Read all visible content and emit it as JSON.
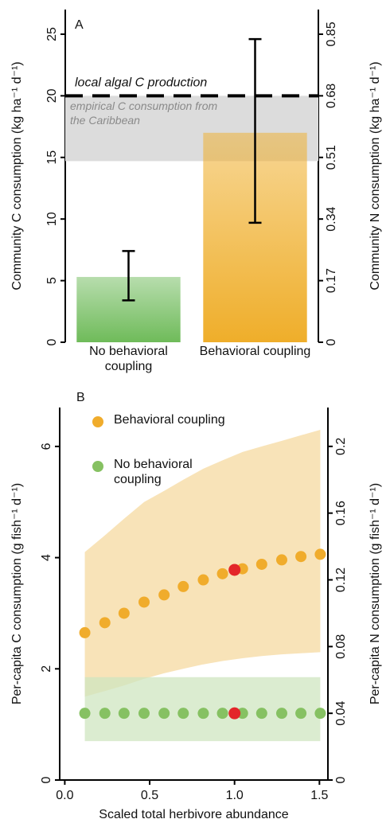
{
  "chart_data": [
    {
      "type": "bar",
      "label": "A",
      "categories": [
        "No behavioral coupling",
        "Behavioral coupling"
      ],
      "values": [
        5.3,
        17
      ],
      "error_low": [
        3.4,
        9.7
      ],
      "error_high": [
        7.4,
        24.6
      ],
      "colors": [
        "#6fbb5a",
        "#efae2a"
      ],
      "ylabel": "Community C consumption (kg ha⁻¹ d⁻¹)",
      "y2label": "Community N consumption (kg ha⁻¹ d⁻¹)",
      "ylim": [
        0,
        27
      ],
      "yticks": [
        0,
        5,
        10,
        15,
        20,
        25
      ],
      "y2lim": [
        0,
        0.918
      ],
      "y2ticks": [
        0,
        0.17,
        0.34,
        0.51,
        0.68,
        0.85
      ],
      "reference_line": {
        "value": 20,
        "label": "local algal C production"
      },
      "band": {
        "range": [
          14.7,
          20
        ],
        "label": "empirical C consumption from the Caribbean",
        "color": "#dcdcdc"
      }
    },
    {
      "type": "scatter",
      "label": "B",
      "x": [
        0.118,
        0.236,
        0.349,
        0.467,
        0.585,
        0.698,
        0.816,
        0.929,
        1.047,
        1.16,
        1.278,
        1.391,
        1.505
      ],
      "series": [
        {
          "name": "Behavioral coupling",
          "color": "#f0ac2c",
          "band_color": "#f6d9a0",
          "values": [
            2.65,
            2.83,
            3.0,
            3.2,
            3.33,
            3.48,
            3.6,
            3.71,
            3.8,
            3.88,
            3.96,
            4.02,
            4.06
          ],
          "lower": [
            1.5,
            1.6,
            1.7,
            1.82,
            1.92,
            2.0,
            2.08,
            2.14,
            2.19,
            2.23,
            2.26,
            2.28,
            2.3
          ],
          "upper": [
            4.1,
            4.4,
            4.7,
            5.0,
            5.2,
            5.4,
            5.6,
            5.75,
            5.9,
            6.0,
            6.1,
            6.2,
            6.3
          ]
        },
        {
          "name": "No behavioral coupling",
          "color": "#86c162",
          "band_color": "#cfe6c0",
          "values": [
            1.2,
            1.2,
            1.2,
            1.2,
            1.2,
            1.2,
            1.2,
            1.2,
            1.2,
            1.2,
            1.2,
            1.2,
            1.2
          ],
          "lower": [
            0.7,
            0.7,
            0.7,
            0.7,
            0.7,
            0.7,
            0.7,
            0.7,
            0.7,
            0.7,
            0.7,
            0.7,
            0.7
          ],
          "upper": [
            1.85,
            1.85,
            1.85,
            1.85,
            1.85,
            1.85,
            1.85,
            1.85,
            1.85,
            1.85,
            1.85,
            1.85,
            1.85
          ]
        }
      ],
      "highlight": {
        "x": 1.0,
        "values": [
          3.78,
          1.2
        ],
        "color": "#e3262a"
      },
      "xlabel": "Scaled total herbivore abundance",
      "ylabel": "Per-capita C consumption (g fish⁻¹ d⁻¹)",
      "y2label": "Per-capita N consumption (g fish⁻¹ d⁻¹)",
      "xlim": [
        -0.03,
        1.55
      ],
      "xticks": [
        {
          "value": 0,
          "label": "0.0"
        },
        {
          "value": 0.5,
          "label": "0.5"
        },
        {
          "value": 1,
          "label": "1.0"
        },
        {
          "value": 1.5,
          "label": "1.5"
        }
      ],
      "ylim": [
        0,
        6.7
      ],
      "yticks": [
        0,
        2,
        4,
        6
      ],
      "y2lim": [
        0,
        0.2233
      ],
      "y2ticks": [
        0,
        0.04,
        0.08,
        0.12,
        0.16,
        0.2
      ]
    }
  ]
}
